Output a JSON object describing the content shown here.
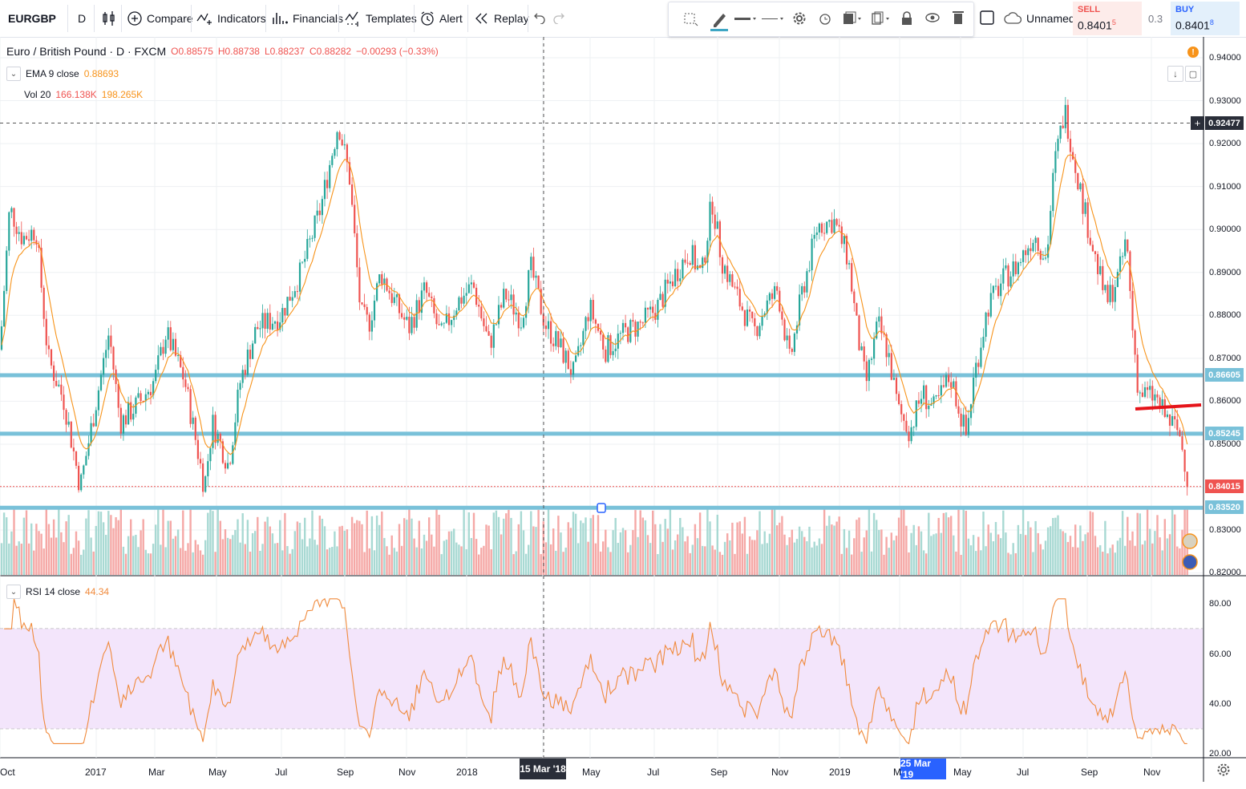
{
  "toolbar": {
    "symbol": "EURGBP",
    "interval": "D",
    "compare": "Compare",
    "indicators": "Indicators",
    "financials": "Financials",
    "templates": "Templates",
    "alert": "Alert",
    "replay": "Replay",
    "layout_name": "Unnamed",
    "sell_label": "SELL",
    "sell_price": "0.8401",
    "sell_sup": "5",
    "spread": "0.3",
    "buy_label": "BUY",
    "buy_price": "0.8401",
    "buy_sup": "8"
  },
  "legend": {
    "title": "Euro / British Pound · D · FXCM",
    "open": "O0.88575",
    "high": "H0.88738",
    "low": "L0.88237",
    "close": "C0.88282",
    "change": "−0.00293 (−0.33%)",
    "ema_label": "EMA 9 close",
    "ema_value": "0.88693",
    "vol_label": "Vol 20",
    "vol_value1": "166.138K",
    "vol_value2": "198.265K",
    "rsi_label": "RSI 14 close",
    "rsi_value": "44.34"
  },
  "price_axis": {
    "ticks": [
      "0.94000",
      "0.93000",
      "0.92000",
      "0.91000",
      "0.90000",
      "0.89000",
      "0.88000",
      "0.87000",
      "0.86000",
      "0.85000",
      "0.83000",
      "0.82000"
    ],
    "crosshair_price": "0.92477",
    "level_1": "0.86605",
    "level_2": "0.85245",
    "last_price": "0.84015",
    "level_3": "0.83520"
  },
  "rsi_axis": {
    "ticks": [
      "80.00",
      "60.00",
      "40.00",
      "20.00"
    ]
  },
  "time_axis": {
    "labels": [
      "Oct",
      "2017",
      "Mar",
      "May",
      "Jul",
      "Sep",
      "Nov",
      "2018",
      "15 Mar '18",
      "May",
      "Jul",
      "Sep",
      "Nov",
      "2019",
      "M",
      "25 Mar '19",
      "May",
      "Jul",
      "Sep",
      "Nov"
    ]
  },
  "colors": {
    "up": "#26a69a",
    "down": "#ef5350",
    "ema": "#f7931a",
    "hline": "#79c1d9",
    "rsi": "#f08a3c",
    "rsi_band": "#f3e5fb",
    "last_price": "#ef5350",
    "trend": "#e5141a"
  },
  "icons": [
    "chart-type-icon",
    "compare-plus-icon",
    "indicators-icon",
    "financials-icon",
    "templates-icon",
    "alert-clock-icon",
    "replay-icon",
    "undo-icon",
    "redo-icon",
    "cursor-select-icon",
    "pencil-icon",
    "line-style-icon",
    "settings-gear-icon",
    "cloud-icon",
    "settings-gear-bottom-icon"
  ]
}
